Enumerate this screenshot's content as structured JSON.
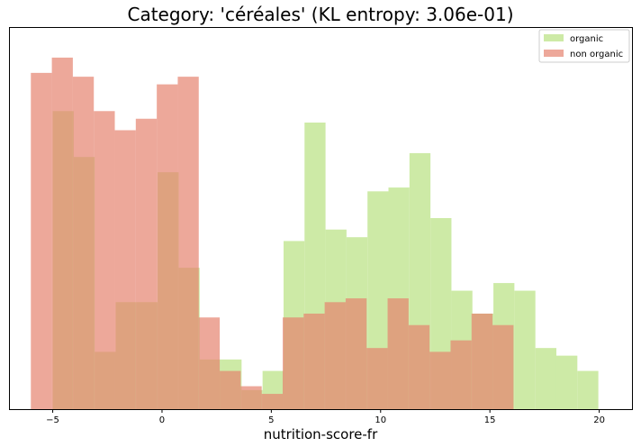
{
  "chart_data": {
    "type": "bar",
    "title": "Category: 'céréales' (KL entropy: 3.06e-01)",
    "xlabel": "nutrition-score-fr",
    "ylabel": "",
    "xlim": [
      -7,
      21.5
    ],
    "ylim": [
      0,
      1
    ],
    "grid": false,
    "legend_position": "top-right",
    "xticks": [
      -5,
      0,
      5,
      10,
      15,
      20
    ],
    "series": [
      {
        "name": "organic",
        "color": "#cdeaa6",
        "bins": [
          [
            -5.0,
            -4.04,
            0.78
          ],
          [
            -4.04,
            -3.08,
            0.66
          ],
          [
            -3.08,
            -2.12,
            0.15
          ],
          [
            -2.12,
            -1.16,
            0.28
          ],
          [
            -1.16,
            -0.2,
            0.28
          ],
          [
            -0.2,
            0.76,
            0.62
          ],
          [
            0.76,
            1.72,
            0.37
          ],
          [
            1.72,
            2.68,
            0.13
          ],
          [
            2.68,
            3.64,
            0.13
          ],
          [
            3.64,
            4.6,
            0.05
          ],
          [
            4.6,
            5.56,
            0.1
          ],
          [
            5.56,
            6.52,
            0.44
          ],
          [
            6.52,
            7.48,
            0.75
          ],
          [
            7.48,
            8.44,
            0.47
          ],
          [
            8.44,
            9.4,
            0.45
          ],
          [
            9.4,
            10.36,
            0.57
          ],
          [
            10.36,
            11.32,
            0.58
          ],
          [
            11.32,
            12.28,
            0.67
          ],
          [
            12.28,
            13.24,
            0.5
          ],
          [
            13.24,
            14.2,
            0.31
          ],
          [
            14.2,
            15.16,
            0.25
          ],
          [
            15.16,
            16.12,
            0.33
          ],
          [
            16.12,
            17.08,
            0.31
          ],
          [
            17.08,
            18.04,
            0.16
          ],
          [
            18.04,
            19.0,
            0.14
          ],
          [
            19.0,
            19.96,
            0.1
          ]
        ]
      },
      {
        "name": "non organic",
        "color": "#e6836f",
        "bins": [
          [
            -6.0,
            -5.04,
            0.88
          ],
          [
            -5.04,
            -4.08,
            0.92
          ],
          [
            -4.08,
            -3.12,
            0.87
          ],
          [
            -3.12,
            -2.16,
            0.78
          ],
          [
            -2.16,
            -1.2,
            0.73
          ],
          [
            -1.2,
            -0.24,
            0.76
          ],
          [
            -0.24,
            0.72,
            0.85
          ],
          [
            0.72,
            1.68,
            0.87
          ],
          [
            1.68,
            2.64,
            0.24
          ],
          [
            2.64,
            3.6,
            0.1
          ],
          [
            3.6,
            4.56,
            0.06
          ],
          [
            4.56,
            5.52,
            0.04
          ],
          [
            5.52,
            6.48,
            0.24
          ],
          [
            6.48,
            7.44,
            0.25
          ],
          [
            7.44,
            8.4,
            0.28
          ],
          [
            8.4,
            9.36,
            0.29
          ],
          [
            9.36,
            10.32,
            0.16
          ],
          [
            10.32,
            11.28,
            0.29
          ],
          [
            11.28,
            12.24,
            0.22
          ],
          [
            12.24,
            13.2,
            0.15
          ],
          [
            13.2,
            14.16,
            0.18
          ],
          [
            14.16,
            15.12,
            0.25
          ],
          [
            15.12,
            16.08,
            0.22
          ]
        ]
      }
    ]
  }
}
